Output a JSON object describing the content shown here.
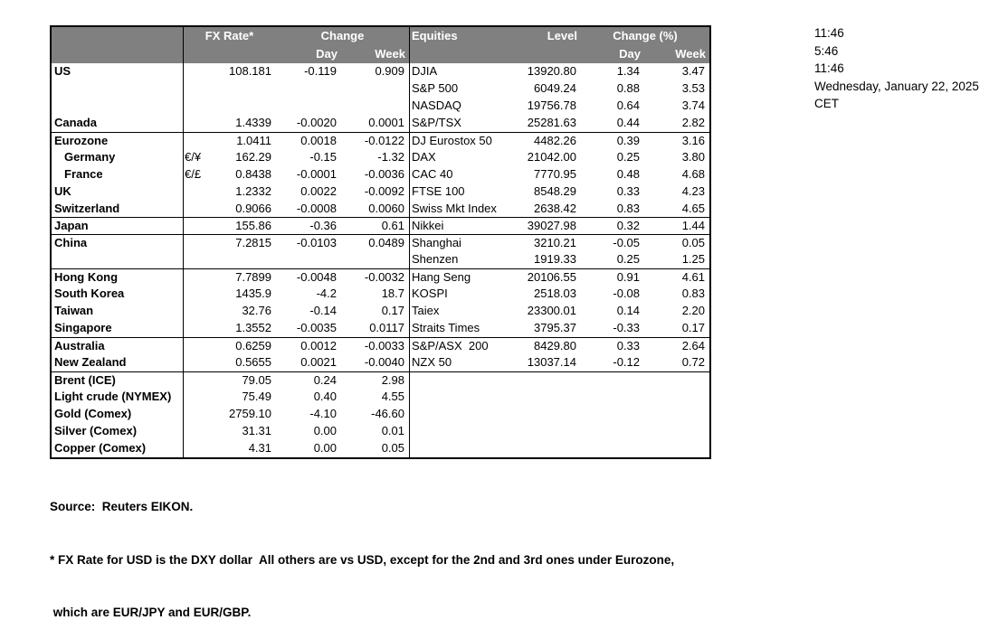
{
  "header": {
    "fx_rate": "FX Rate*",
    "change": "Change",
    "day": "Day",
    "week": "Week",
    "equities": "Equities",
    "level": "Level",
    "change_pct": "Change (%)"
  },
  "rows": [
    {
      "name": "US",
      "pair": "",
      "fx": "108.181",
      "day": "-0.119",
      "week": "0.909",
      "eq": "DJIA",
      "level": "13920.80",
      "eqday": "1.34",
      "eqweek": "3.47"
    },
    {
      "name": "",
      "pair": "",
      "fx": "",
      "day": "",
      "week": "",
      "eq": "S&P 500",
      "level": "6049.24",
      "eqday": "0.88",
      "eqweek": "3.53"
    },
    {
      "name": "",
      "pair": "",
      "fx": "",
      "day": "",
      "week": "",
      "eq": "NASDAQ",
      "level": "19756.78",
      "eqday": "0.64",
      "eqweek": "3.74"
    },
    {
      "name": "Canada",
      "pair": "",
      "fx": "1.4339",
      "day": "-0.0020",
      "week": "0.0001",
      "eq": "S&P/TSX",
      "level": "25281.63",
      "eqday": "0.44",
      "eqweek": "2.82"
    },
    {
      "sep": true,
      "name": "Eurozone",
      "pair": "",
      "fx": "1.0411",
      "day": "0.0018",
      "week": "-0.0122",
      "eq": "DJ Eurostox 50",
      "level": "4482.26",
      "eqday": "0.39",
      "eqweek": "3.16"
    },
    {
      "indent": true,
      "name": "Germany",
      "pair": "€/¥",
      "fx": "162.29",
      "day": "-0.15",
      "week": "-1.32",
      "eq": "DAX",
      "level": "21042.00",
      "eqday": "0.25",
      "eqweek": "3.80"
    },
    {
      "indent": true,
      "name": "France",
      "pair": "€/£",
      "fx": "0.8438",
      "day": "-0.0001",
      "week": "-0.0036",
      "eq": "CAC 40",
      "level": "7770.95",
      "eqday": "0.48",
      "eqweek": "4.68"
    },
    {
      "name": "UK",
      "pair": "",
      "fx": "1.2332",
      "day": "0.0022",
      "week": "-0.0092",
      "eq": "FTSE 100",
      "level": "8548.29",
      "eqday": "0.33",
      "eqweek": "4.23"
    },
    {
      "name": "Switzerland",
      "pair": "",
      "fx": "0.9066",
      "day": "-0.0008",
      "week": "0.0060",
      "eq": "Swiss Mkt Index",
      "level": "2638.42",
      "eqday": "0.83",
      "eqweek": "4.65"
    },
    {
      "sep": true,
      "name": "Japan",
      "pair": "",
      "fx": "155.86",
      "day": "-0.36",
      "week": "0.61",
      "eq": "Nikkei",
      "level": "39027.98",
      "eqday": "0.32",
      "eqweek": "1.44"
    },
    {
      "sep": true,
      "name": "China",
      "pair": "",
      "fx": "7.2815",
      "day": "-0.0103",
      "week": "0.0489",
      "eq": "Shanghai",
      "level": "3210.21",
      "eqday": "-0.05",
      "eqweek": "0.05"
    },
    {
      "name": "",
      "pair": "",
      "fx": "",
      "day": "",
      "week": "",
      "eq": "Shenzen",
      "level": "1919.33",
      "eqday": "0.25",
      "eqweek": "1.25"
    },
    {
      "sep": true,
      "name": "Hong Kong",
      "pair": "",
      "fx": "7.7899",
      "day": "-0.0048",
      "week": "-0.0032",
      "eq": "Hang Seng",
      "level": "20106.55",
      "eqday": "0.91",
      "eqweek": "4.61"
    },
    {
      "name": "South Korea",
      "pair": "",
      "fx": "1435.9",
      "day": "-4.2",
      "week": "18.7",
      "eq": "KOSPI",
      "level": "2518.03",
      "eqday": "-0.08",
      "eqweek": "0.83"
    },
    {
      "name": "Taiwan",
      "pair": "",
      "fx": "32.76",
      "day": "-0.14",
      "week": "0.17",
      "eq": "Taiex",
      "level": "23300.01",
      "eqday": "0.14",
      "eqweek": "2.20"
    },
    {
      "name": "Singapore",
      "pair": "",
      "fx": "1.3552",
      "day": "-0.0035",
      "week": "0.0117",
      "eq": "Straits Times",
      "level": "3795.37",
      "eqday": "-0.33",
      "eqweek": "0.17"
    },
    {
      "sep": true,
      "name": "Australia",
      "pair": "",
      "fx": "0.6259",
      "day": "0.0012",
      "week": "-0.0033",
      "eq": "S&P/ASX  200",
      "level": "8429.80",
      "eqday": "0.33",
      "eqweek": "2.64"
    },
    {
      "name": "New Zealand",
      "pair": "",
      "fx": "0.5655",
      "day": "0.0021",
      "week": "-0.0040",
      "eq": "NZX 50",
      "level": "13037.14",
      "eqday": "-0.12",
      "eqweek": "0.72"
    },
    {
      "sep": true,
      "name": "Brent (ICE)",
      "pair": "",
      "fx": "79.05",
      "day": "0.24",
      "week": "2.98",
      "eq": "",
      "level": "",
      "eqday": "",
      "eqweek": ""
    },
    {
      "name": "Light crude (NYMEX)",
      "pair": "",
      "fx": "75.49",
      "day": "0.40",
      "week": "4.55",
      "eq": "",
      "level": "",
      "eqday": "",
      "eqweek": ""
    },
    {
      "name": "Gold (Comex)",
      "pair": "",
      "fx": "2759.10",
      "day": "-4.10",
      "week": "-46.60",
      "eq": "",
      "level": "",
      "eqday": "",
      "eqweek": ""
    },
    {
      "name": "Silver (Comex)",
      "pair": "",
      "fx": "31.31",
      "day": "0.00",
      "week": "0.01",
      "eq": "",
      "level": "",
      "eqday": "",
      "eqweek": ""
    },
    {
      "name": "Copper (Comex)",
      "pair": "",
      "fx": "4.31",
      "day": "0.00",
      "week": "0.05",
      "eq": "",
      "level": "",
      "eqday": "",
      "eqweek": ""
    }
  ],
  "info": {
    "lines": [
      "11:46",
      "5:46",
      "11:46",
      "Wednesday, January 22, 2025",
      "CET"
    ]
  },
  "footer": {
    "source": "Source:  Reuters EIKON.",
    "note1": "* FX Rate for USD is the DXY dollar  All others are vs USD, except for the 2nd and 3rd ones under Eurozone,",
    "note2": " which are EUR/JPY and EUR/GBP."
  },
  "colors": {
    "header_bg": "#808080",
    "header_text": "#ffffff",
    "border": "#000000",
    "body_text": "#000000"
  }
}
